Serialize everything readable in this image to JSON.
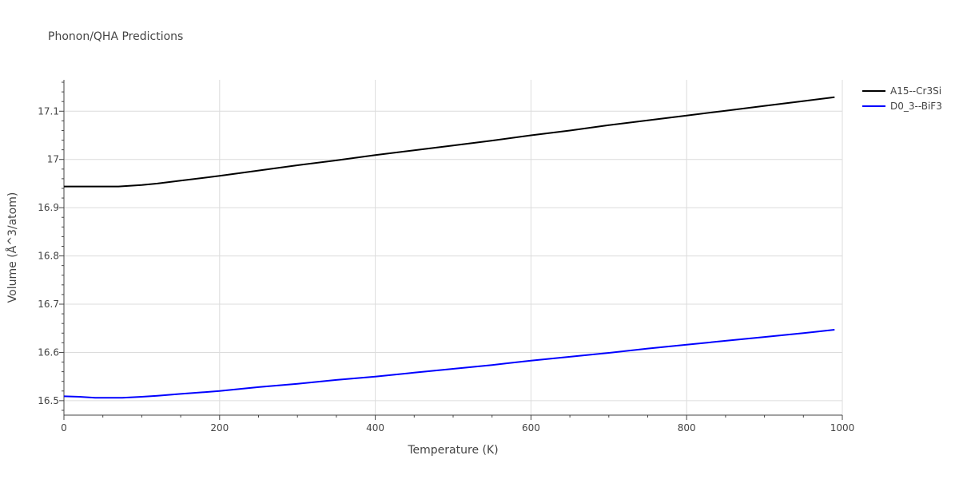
{
  "chart_data": {
    "type": "line",
    "title": "Phonon/QHA Predictions",
    "xlabel": "Temperature (K)",
    "ylabel": "Volume (Å^3/atom)",
    "xlim": [
      0,
      1000
    ],
    "ylim": [
      16.47,
      17.165
    ],
    "x_ticks": [
      0,
      200,
      400,
      600,
      800,
      1000
    ],
    "x_tick_labels": [
      "0",
      "200",
      "400",
      "600",
      "800",
      "1000"
    ],
    "y_ticks": [
      16.5,
      16.6,
      16.7,
      16.8,
      16.9,
      17,
      17.1
    ],
    "y_tick_labels": [
      "16.5",
      "16.6",
      "16.7",
      "16.8",
      "16.9",
      "17",
      "17.1"
    ],
    "grid": true,
    "legend_position": "top-right",
    "series": [
      {
        "name": "A15--Cr3Si",
        "color": "#000000",
        "x": [
          0,
          20,
          40,
          70,
          100,
          120,
          150,
          200,
          250,
          300,
          350,
          400,
          450,
          500,
          550,
          600,
          650,
          700,
          750,
          800,
          850,
          900,
          950,
          990
        ],
        "y": [
          16.944,
          16.944,
          16.944,
          16.944,
          16.947,
          16.95,
          16.956,
          16.966,
          16.977,
          16.988,
          16.998,
          17.009,
          17.019,
          17.029,
          17.039,
          17.05,
          17.06,
          17.071,
          17.081,
          17.091,
          17.101,
          17.111,
          17.121,
          17.129
        ]
      },
      {
        "name": "D0_3--BiF3",
        "color": "#0000ff",
        "x": [
          0,
          20,
          40,
          75,
          100,
          120,
          150,
          200,
          250,
          300,
          350,
          400,
          450,
          500,
          550,
          600,
          650,
          700,
          750,
          800,
          850,
          900,
          950,
          990
        ],
        "y": [
          16.509,
          16.508,
          16.506,
          16.506,
          16.508,
          16.51,
          16.514,
          16.52,
          16.528,
          16.535,
          16.543,
          16.55,
          16.558,
          16.566,
          16.574,
          16.583,
          16.591,
          16.599,
          16.608,
          16.616,
          16.624,
          16.632,
          16.64,
          16.647
        ]
      }
    ]
  }
}
